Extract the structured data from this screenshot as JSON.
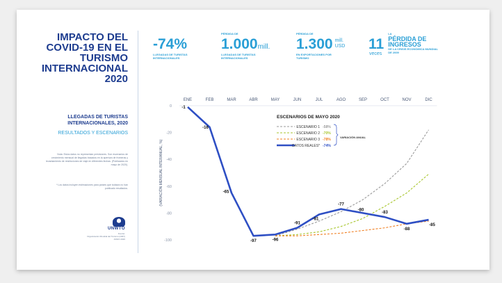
{
  "left_panel": {
    "title": "IMPACTO DEL\nCOVID-19 EN EL\nTURISMO\nINTERNACIONAL\n2020",
    "subtitle": "LLEGADAS DE TURISTAS\nINTERNACIONALES, 2020",
    "subtitle2": "RESULTADOS Y ESCENARIOS",
    "note1": "Nota: Estos datos no representan previsiones. Son escenarios de crecimiento mensual de llegadas basados en la apertura de fronteras y levantamiento de restricciones de viaje en diferentes fechas. (Publicados en mayo de 2020).",
    "note2": "* Los datos incluyen estimaciones para países que todavía no han publicado resultados.",
    "logo": "UNWTO",
    "source": "Fuente:\nOrganización Mundial del Turismo (OMT)\nJUNIO 2020"
  },
  "stats": [
    {
      "pre": "",
      "value": "-74%",
      "unit": "",
      "desc": "LLEGADAS DE TURISTAS\nINTERNACIONALES"
    },
    {
      "pre": "PÉRDIDA DE",
      "value": "1.000",
      "unit": "mill.",
      "desc": "LLEGADAS DE TURISTAS\nINTERNACIONALES"
    },
    {
      "pre": "PÉRDIDA DE",
      "value": "1.300",
      "unit": "mill.\nUSD",
      "desc": "EN EXPORTACIONES POR\nTURISMO"
    },
    {
      "pre": "",
      "value": "11",
      "veces": "veces",
      "lead": "LA",
      "title": "PÉRDIDA DE\nINGRESOS",
      "desc": "DE LA CRISIS ECONÓMICA MUNDIAL\nDE 2009"
    }
  ],
  "chart_data": {
    "type": "line",
    "categories": [
      "ENE",
      "FEB",
      "MAR",
      "ABR",
      "MAY",
      "JUN",
      "JUL",
      "AGO",
      "SEP",
      "OCT",
      "NOV",
      "DIC"
    ],
    "ylabel": "(VARIACIÓN MENSUAL INTERANUAL, %)",
    "yticks": [
      "0",
      "-20",
      "-40",
      "-60",
      "-80",
      "-100"
    ],
    "ylim": [
      -100,
      0
    ],
    "legend_title": "ESCENARIOS DE MAYO 2020",
    "legend_group_label": "VARIACIÓN ANUAL",
    "series": [
      {
        "name": "ESCENARIO 1",
        "annual": "-58%",
        "color": "#9a9a9a",
        "dashed": true,
        "x": [
          "MAY",
          "JUN",
          "JUL",
          "AGO",
          "SEP",
          "OCT",
          "NOV",
          "DIC"
        ],
        "values": [
          -97,
          -92,
          -86,
          -79,
          -70,
          -58,
          -43,
          -18
        ]
      },
      {
        "name": "ESCENARIO 2",
        "annual": "-70%",
        "color": "#a8c62d",
        "dashed": true,
        "x": [
          "MAY",
          "JUN",
          "JUL",
          "AGO",
          "SEP",
          "OCT",
          "NOV",
          "DIC"
        ],
        "values": [
          -97,
          -96,
          -94,
          -90,
          -84,
          -75,
          -65,
          -51
        ]
      },
      {
        "name": "ESCENARIO 3",
        "annual": "-78%",
        "color": "#f07f22",
        "dashed": true,
        "x": [
          "MAY",
          "JUN",
          "JUL",
          "AGO",
          "SEP",
          "OCT",
          "NOV",
          "DIC"
        ],
        "values": [
          -97,
          -97,
          -96,
          -95,
          -93,
          -91,
          -88,
          -86
        ]
      },
      {
        "name": "DATOS REALES*",
        "annual": "-74%",
        "color": "#2e4fc4",
        "dashed": false,
        "x": [
          "ENE",
          "FEB",
          "MAR",
          "ABR",
          "MAY",
          "JUN",
          "JUL",
          "AGO",
          "SEP",
          "OCT",
          "NOV",
          "DIC"
        ],
        "values": [
          -1,
          -16,
          -65,
          -97,
          -96,
          -91,
          -81,
          -77,
          -80,
          -83,
          -88,
          -85
        ],
        "labels": [
          "-1",
          "-16",
          "-65",
          "-97",
          "-96",
          "-91",
          "-81",
          "-77",
          "-80",
          "-83",
          "-88",
          "-85"
        ]
      }
    ]
  }
}
